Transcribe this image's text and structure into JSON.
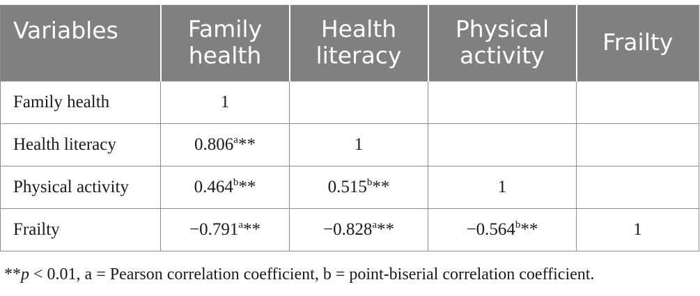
{
  "table": {
    "headers": [
      "Variables",
      "Family\nhealth",
      "Health\nliteracy",
      "Physical\nactivity",
      "Frailty"
    ],
    "rows": [
      {
        "label": "Family health",
        "cells": [
          {
            "value": "1",
            "sup": "",
            "stars": ""
          },
          {
            "value": "",
            "sup": "",
            "stars": ""
          },
          {
            "value": "",
            "sup": "",
            "stars": ""
          },
          {
            "value": "",
            "sup": "",
            "stars": ""
          }
        ]
      },
      {
        "label": "Health literacy",
        "cells": [
          {
            "value": "0.806",
            "sup": "a",
            "stars": "**"
          },
          {
            "value": "1",
            "sup": "",
            "stars": ""
          },
          {
            "value": "",
            "sup": "",
            "stars": ""
          },
          {
            "value": "",
            "sup": "",
            "stars": ""
          }
        ]
      },
      {
        "label": "Physical activity",
        "cells": [
          {
            "value": "0.464",
            "sup": "b",
            "stars": "**"
          },
          {
            "value": "0.515",
            "sup": "b",
            "stars": "**"
          },
          {
            "value": "1",
            "sup": "",
            "stars": ""
          },
          {
            "value": "",
            "sup": "",
            "stars": ""
          }
        ]
      },
      {
        "label": "Frailty",
        "cells": [
          {
            "value": "−0.791",
            "sup": "a",
            "stars": "**"
          },
          {
            "value": "−0.828",
            "sup": "a",
            "stars": "**"
          },
          {
            "value": "−0.564",
            "sup": "b",
            "stars": "**"
          },
          {
            "value": "1",
            "sup": "",
            "stars": ""
          }
        ]
      }
    ]
  },
  "footnote": {
    "stars": "**",
    "p_symbol": "p",
    "text": " < 0.01, a = Pearson correlation coefficient, b = point-biserial correlation coefficient."
  },
  "colors": {
    "header_bg": "#808080",
    "header_text": "#ffffff",
    "border": "#8c8c8c",
    "body_text": "#1a1a1a"
  }
}
